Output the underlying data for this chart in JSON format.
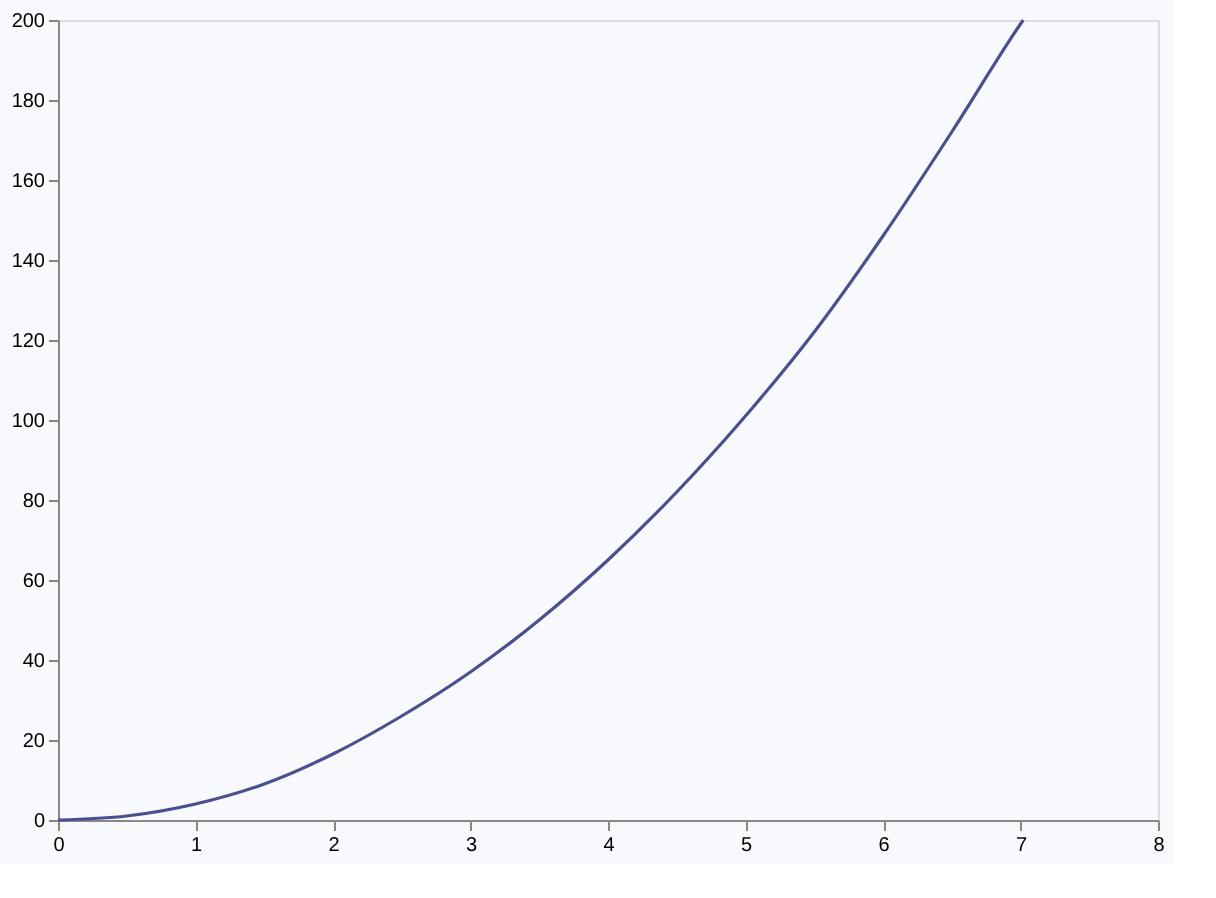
{
  "chart_data": {
    "type": "line",
    "x": [
      0,
      0.5,
      1,
      1.5,
      2,
      2.5,
      3,
      3.5,
      4,
      4.5,
      5,
      5.5,
      6,
      6.5,
      7,
      7.02
    ],
    "series": [
      {
        "color": "#4a4f8f",
        "values": [
          0,
          1,
          4,
          9,
          16.5,
          26,
          37,
          50,
          65,
          82,
          101,
          122,
          146,
          172,
          199,
          200
        ]
      }
    ],
    "xlim": [
      0,
      8
    ],
    "xticks": [
      0,
      1,
      2,
      3,
      4,
      5,
      6,
      7,
      8
    ],
    "ylim": [
      0,
      200
    ],
    "yticks": [
      0,
      20,
      40,
      60,
      80,
      100,
      120,
      140,
      160,
      180,
      200
    ],
    "grid": false,
    "legend": false,
    "marker": "none",
    "line_style": "solid"
  }
}
